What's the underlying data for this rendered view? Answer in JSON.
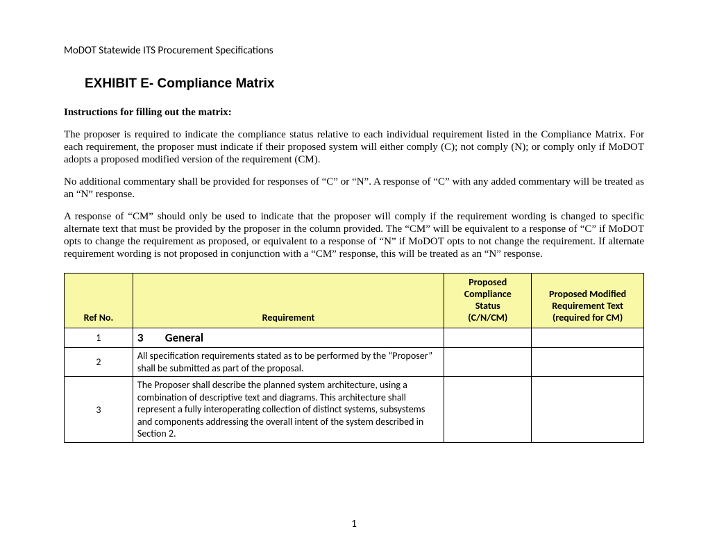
{
  "doc_header": "MoDOT Statewide ITS Procurement Specifications",
  "exhibit_title": "EXHIBIT E- Compliance Matrix",
  "instructions_heading": "Instructions for filling out the matrix:",
  "para1": "The proposer is required to indicate the compliance status relative to each individual requirement listed in the Compliance Matrix. For each requirement, the proposer must indicate if their proposed system will either comply (C); not comply (N); or comply only if MoDOT adopts a proposed modified version of the requirement (CM).",
  "para2": "No additional commentary shall be provided for responses of “C” or “N”. A response of “C” with any added commentary will be treated as an “N” response.",
  "para3": "A response of “CM” should only be used to indicate that the proposer will comply if the requirement wording is changed to specific alternate text that must be provided by the proposer in the column provided. The “CM” will be equivalent to a response of “C” if MoDOT opts to change the requirement as proposed, or equivalent to a response of “N” if MoDOT opts to not change the requirement. If alternate requirement wording is not proposed in conjunction with a “CM” response, this will be treated as an “N” response.",
  "table": {
    "headers": {
      "ref": "Ref No.",
      "req": "Requirement",
      "status_l1": "Proposed",
      "status_l2": "Compliance",
      "status_l3": "Status",
      "status_l4": "(C/N/CM)",
      "mod_l1": "Proposed Modified",
      "mod_l2": "Requirement Text",
      "mod_l3": "(required for CM)"
    },
    "rows": [
      {
        "ref": "1",
        "section_num": "3",
        "section_title": "General",
        "req": "",
        "status": "",
        "mod": ""
      },
      {
        "ref": "2",
        "req": "All specification requirements stated as to be performed by the “Proposer” shall be submitted as part of the proposal.",
        "status": "",
        "mod": ""
      },
      {
        "ref": "3",
        "req": "The Proposer shall describe the planned system architecture, using a combination of descriptive text and diagrams. This architecture shall represent a fully interoperating collection of distinct systems, subsystems and components addressing the overall intent of the system described in Section 2.",
        "status": "",
        "mod": ""
      }
    ]
  },
  "page_number": "1",
  "colors": {
    "header_bg": "#f8f8a6",
    "border": "#000000",
    "text": "#000000",
    "page_bg": "#ffffff"
  }
}
